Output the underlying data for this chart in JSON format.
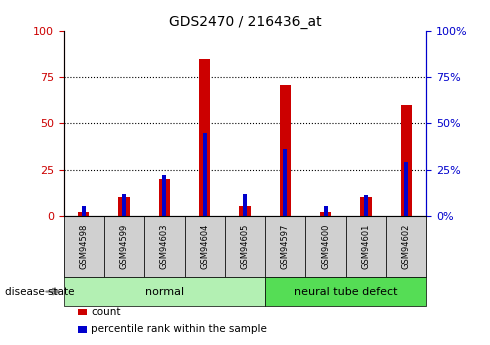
{
  "title": "GDS2470 / 216436_at",
  "samples": [
    "GSM94598",
    "GSM94599",
    "GSM94603",
    "GSM94604",
    "GSM94605",
    "GSM94597",
    "GSM94600",
    "GSM94601",
    "GSM94602"
  ],
  "count_values": [
    2,
    10,
    20,
    85,
    5,
    71,
    2,
    10,
    60
  ],
  "percentile_values": [
    5,
    12,
    22,
    45,
    12,
    36,
    5,
    11,
    29
  ],
  "groups": [
    {
      "label": "normal",
      "start": 0,
      "end": 5,
      "color": "#b3f0b3"
    },
    {
      "label": "neural tube defect",
      "start": 5,
      "end": 9,
      "color": "#55dd55"
    }
  ],
  "ylim": [
    0,
    100
  ],
  "yticks": [
    0,
    25,
    50,
    75,
    100
  ],
  "count_color": "#cc0000",
  "percentile_color": "#0000cc",
  "tick_label_bg": "#d0d0d0",
  "left_axis_color": "#cc0000",
  "right_axis_color": "#0000cc",
  "grid_color": "#000000",
  "legend_items": [
    "count",
    "percentile rank within the sample"
  ],
  "disease_state_label": "disease state",
  "figure_bg": "#ffffff"
}
